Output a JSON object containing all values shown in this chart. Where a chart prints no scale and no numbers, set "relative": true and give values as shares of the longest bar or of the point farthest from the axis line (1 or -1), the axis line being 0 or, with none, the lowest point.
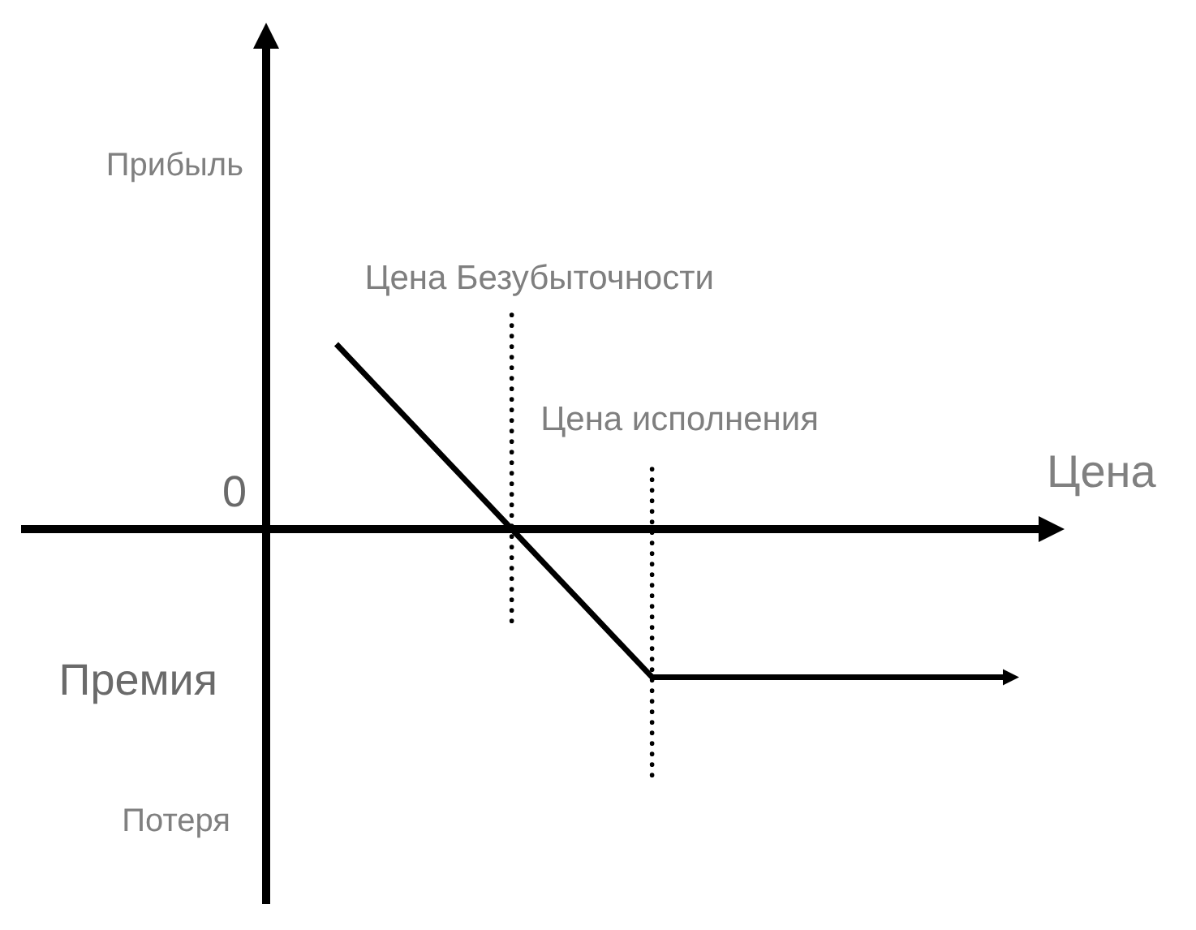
{
  "chart_data": {
    "type": "line",
    "relative": true,
    "xlabel": "Цена",
    "categories": [
      null,
      null,
      null,
      null,
      null,
      null,
      null,
      null,
      null,
      null,
      null,
      null,
      null,
      null,
      null,
      null,
      null,
      null,
      null,
      null,
      null,
      null
    ],
    "series": [
      {
        "color": "#000000",
        "values": [
          null,
          null,
          1,
          0.8,
          0.6,
          0.4,
          0.2,
          0,
          -0.2,
          -0.4,
          -0.6,
          -0.8,
          -0.8,
          -0.8,
          -0.8,
          -0.8,
          -0.8,
          -0.8,
          -0.8,
          -0.8,
          -0.8,
          -0.8
        ]
      }
    ],
    "annotations": [
      "Прибыль",
      "Цена Безубыточности",
      "Цена исполнения",
      "0",
      "Премия",
      "Потеря"
    ]
  }
}
